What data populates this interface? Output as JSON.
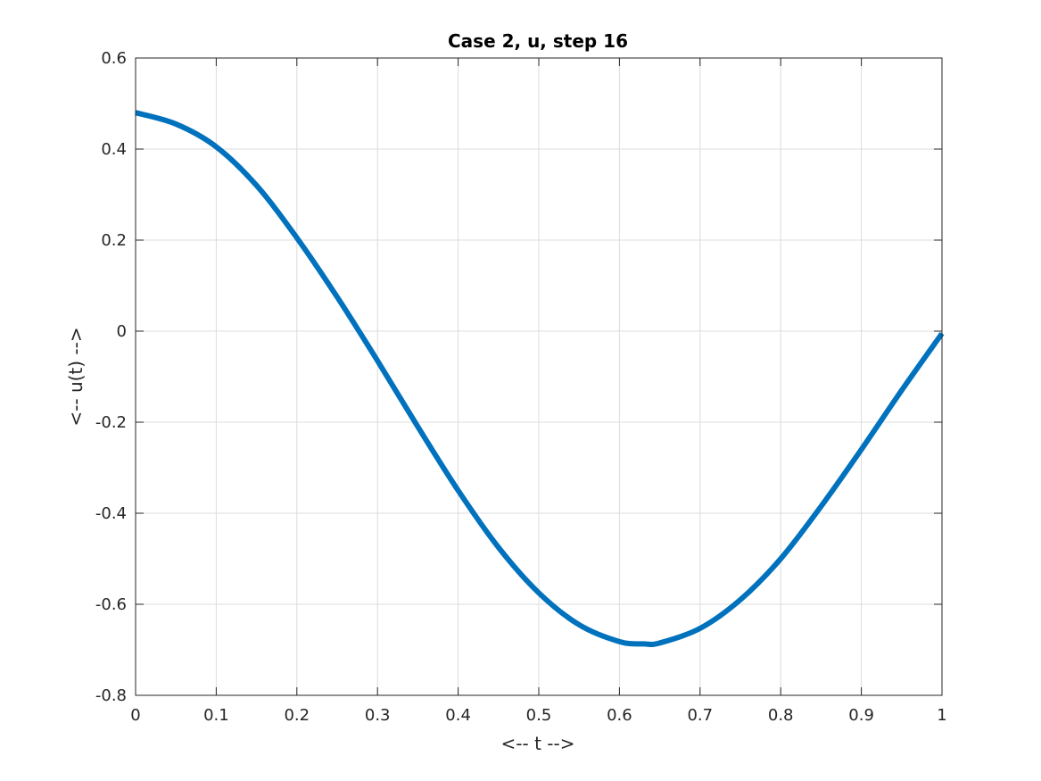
{
  "chart_data": {
    "type": "line",
    "title": "Case 2, u, step 16",
    "xlabel": "<-- t -->",
    "ylabel": "<-- u(t) -->",
    "xlim": [
      0,
      1
    ],
    "ylim": [
      -0.8,
      0.6
    ],
    "xticks": [
      0,
      0.1,
      0.2,
      0.3,
      0.4,
      0.5,
      0.6,
      0.7,
      0.8,
      0.9,
      1
    ],
    "xtick_labels": [
      "0",
      "0.1",
      "0.2",
      "0.3",
      "0.4",
      "0.5",
      "0.6",
      "0.7",
      "0.8",
      "0.9",
      "1"
    ],
    "yticks": [
      -0.8,
      -0.6,
      -0.4,
      -0.2,
      0,
      0.2,
      0.4,
      0.6
    ],
    "ytick_labels": [
      "-0.8",
      "-0.6",
      "-0.4",
      "-0.2",
      "0",
      "0.2",
      "0.4",
      "0.6"
    ],
    "grid": true,
    "series": [
      {
        "color": "#0072bd",
        "x": [
          0,
          0.05,
          0.1,
          0.15,
          0.2,
          0.25,
          0.3,
          0.35,
          0.4,
          0.45,
          0.5,
          0.55,
          0.6,
          0.63,
          0.65,
          0.7,
          0.75,
          0.8,
          0.85,
          0.9,
          0.95,
          1.0
        ],
        "y": [
          0.48,
          0.455,
          0.405,
          0.32,
          0.205,
          0.075,
          -0.065,
          -0.21,
          -0.35,
          -0.475,
          -0.575,
          -0.645,
          -0.682,
          -0.687,
          -0.685,
          -0.653,
          -0.59,
          -0.5,
          -0.385,
          -0.26,
          -0.13,
          -0.005
        ]
      }
    ]
  }
}
